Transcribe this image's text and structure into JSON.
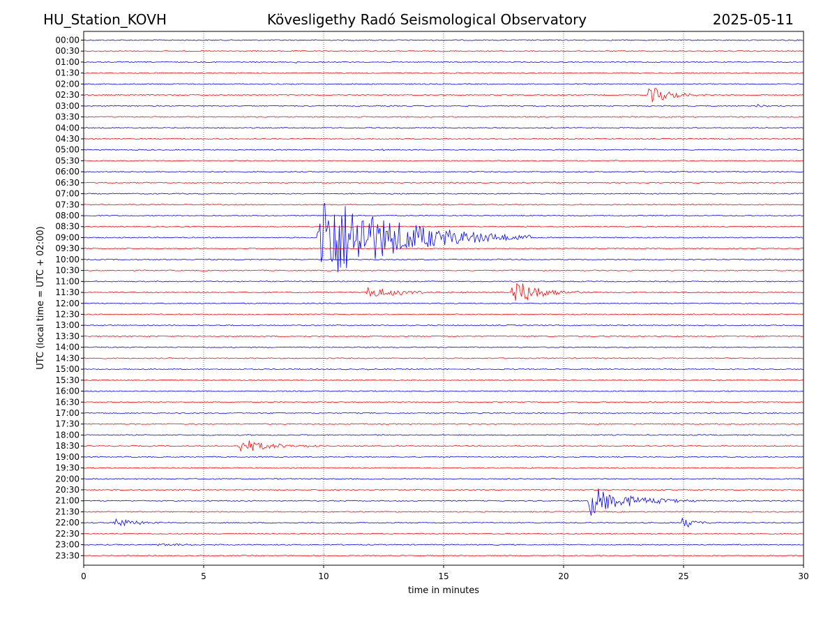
{
  "header": {
    "station": "HU_Station_KOVH",
    "observatory": "Kövesligethy Radó Seismological Observatory",
    "date": "2025-05-11"
  },
  "chart_data": {
    "type": "line",
    "subtype": "helicorder",
    "xlabel": "time in minutes",
    "ylabel": "UTC (local time = UTC + 02:00)",
    "xlim": [
      0,
      30
    ],
    "x_ticks": [
      0,
      5,
      10,
      15,
      20,
      25,
      30
    ],
    "vertical_gridlines_at": [
      5,
      10,
      15,
      20,
      25
    ],
    "grid": "vertical dotted",
    "line_colors": [
      "#0000ff",
      "#ff0000"
    ],
    "row_labels": [
      "00:00",
      "00:30",
      "01:00",
      "01:30",
      "02:00",
      "02:30",
      "03:00",
      "03:30",
      "04:00",
      "04:30",
      "05:00",
      "05:30",
      "06:00",
      "06:30",
      "07:00",
      "07:30",
      "08:00",
      "08:30",
      "09:00",
      "09:30",
      "10:00",
      "10:30",
      "11:00",
      "11:30",
      "12:00",
      "12:30",
      "13:00",
      "13:30",
      "14:00",
      "14:30",
      "15:00",
      "15:30",
      "16:00",
      "16:30",
      "17:00",
      "17:30",
      "18:00",
      "18:30",
      "19:00",
      "19:30",
      "20:00",
      "20:30",
      "21:00",
      "21:30",
      "22:00",
      "22:30",
      "23:00",
      "23:30"
    ],
    "events": [
      {
        "row": "00:30",
        "start_min": 20.8,
        "amplitude": 0.1,
        "duration_min": 0.15
      },
      {
        "row": "01:00",
        "start_min": 8.8,
        "amplitude": 0.35,
        "duration_min": 0.2
      },
      {
        "row": "01:00",
        "start_min": 11.0,
        "amplitude": 0.15,
        "duration_min": 0.15
      },
      {
        "row": "02:30",
        "start_min": 23.5,
        "amplitude": 1.0,
        "duration_min": 2.6
      },
      {
        "row": "03:00",
        "start_min": 28.0,
        "amplitude": 0.25,
        "duration_min": 0.8
      },
      {
        "row": "05:00",
        "start_min": 12.4,
        "amplitude": 0.45,
        "duration_min": 0.3
      },
      {
        "row": "05:00",
        "start_min": 23.3,
        "amplitude": 0.15,
        "duration_min": 0.3
      },
      {
        "row": "06:30",
        "start_min": 19.8,
        "amplitude": 0.3,
        "duration_min": 0.1
      },
      {
        "row": "09:00",
        "start_min": 9.7,
        "amplitude": 5.0,
        "duration_min": 9.0
      },
      {
        "row": "10:30",
        "start_min": 24.3,
        "amplitude": 0.2,
        "duration_min": 0.1
      },
      {
        "row": "11:30",
        "start_min": 11.7,
        "amplitude": 0.55,
        "duration_min": 5.0
      },
      {
        "row": "11:30",
        "start_min": 17.8,
        "amplitude": 1.4,
        "duration_min": 3.5
      },
      {
        "row": "12:30",
        "start_min": 20.9,
        "amplitude": 0.2,
        "duration_min": 0.3
      },
      {
        "row": "12:30",
        "start_min": 28.2,
        "amplitude": 0.15,
        "duration_min": 0.3
      },
      {
        "row": "15:00",
        "start_min": 11.7,
        "amplitude": 0.2,
        "duration_min": 0.3
      },
      {
        "row": "16:30",
        "start_min": 23.5,
        "amplitude": 0.15,
        "duration_min": 0.5
      },
      {
        "row": "17:00",
        "start_min": 3.9,
        "amplitude": 0.15,
        "duration_min": 0.3
      },
      {
        "row": "18:30",
        "start_min": 6.4,
        "amplitude": 0.7,
        "duration_min": 4.0
      },
      {
        "row": "19:00",
        "start_min": 3.3,
        "amplitude": 0.15,
        "duration_min": 0.2
      },
      {
        "row": "19:00",
        "start_min": 10.5,
        "amplitude": 0.15,
        "duration_min": 0.2
      },
      {
        "row": "21:00",
        "start_min": 21.0,
        "amplitude": 1.5,
        "duration_min": 5.0
      },
      {
        "row": "22:00",
        "start_min": 1.2,
        "amplitude": 0.55,
        "duration_min": 2.5
      },
      {
        "row": "22:00",
        "start_min": 24.9,
        "amplitude": 0.65,
        "duration_min": 1.7
      },
      {
        "row": "23:00",
        "start_min": 3.0,
        "amplitude": 0.15,
        "duration_min": 4.5
      }
    ]
  }
}
